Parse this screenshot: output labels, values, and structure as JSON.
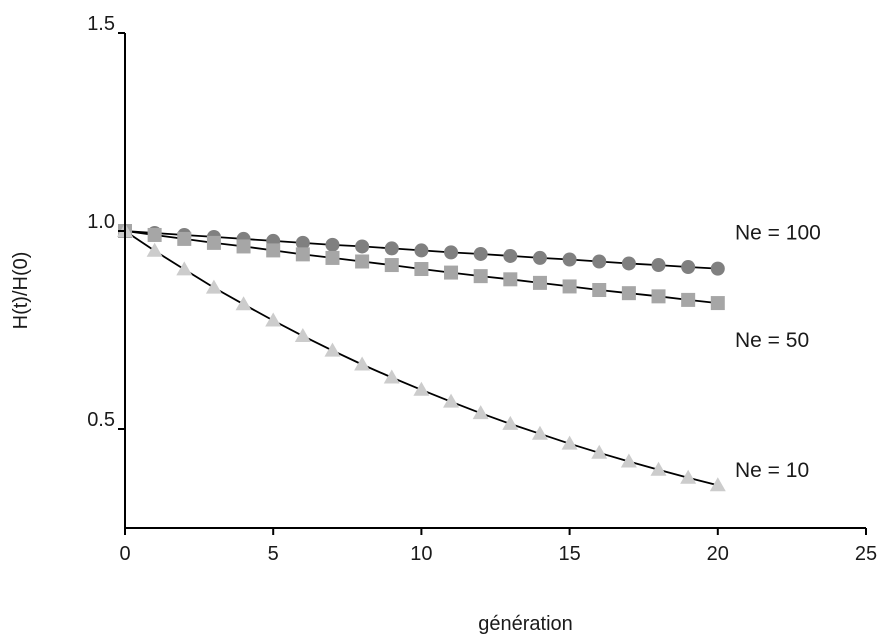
{
  "chart_data": {
    "type": "line",
    "xlabel": "génération",
    "ylabel": "H(t)/H(0)",
    "xlim": [
      0,
      25
    ],
    "ylim": [
      0.25,
      1.5
    ],
    "x_ticks": [
      "0",
      "5",
      "10",
      "15",
      "20",
      "25"
    ],
    "y_ticks": [
      "0.5",
      "1.0",
      "1.5"
    ],
    "grid": false,
    "legend": "inline labels at line ends",
    "x": [
      0,
      1,
      2,
      3,
      4,
      5,
      6,
      7,
      8,
      9,
      10,
      11,
      12,
      13,
      14,
      15,
      16,
      17,
      18,
      19,
      20
    ],
    "series": [
      {
        "name": "Ne = 100",
        "marker": "circle",
        "color": "#808080",
        "values": [
          1.0,
          0.995,
          0.99,
          0.985,
          0.98,
          0.975,
          0.97,
          0.965,
          0.961,
          0.956,
          0.951,
          0.946,
          0.942,
          0.937,
          0.932,
          0.928,
          0.923,
          0.918,
          0.914,
          0.909,
          0.905
        ]
      },
      {
        "name": "Ne = 50",
        "marker": "square",
        "color": "#a6a6a6",
        "values": [
          1.0,
          0.99,
          0.98,
          0.97,
          0.961,
          0.951,
          0.941,
          0.932,
          0.923,
          0.914,
          0.904,
          0.895,
          0.886,
          0.878,
          0.869,
          0.86,
          0.851,
          0.843,
          0.835,
          0.826,
          0.818
        ]
      },
      {
        "name": "Ne = 10",
        "marker": "triangle",
        "color": "#cccccc",
        "values": [
          1.0,
          0.95,
          0.903,
          0.857,
          0.815,
          0.774,
          0.735,
          0.698,
          0.663,
          0.63,
          0.599,
          0.569,
          0.54,
          0.513,
          0.488,
          0.463,
          0.44,
          0.418,
          0.397,
          0.377,
          0.358
        ]
      }
    ]
  }
}
